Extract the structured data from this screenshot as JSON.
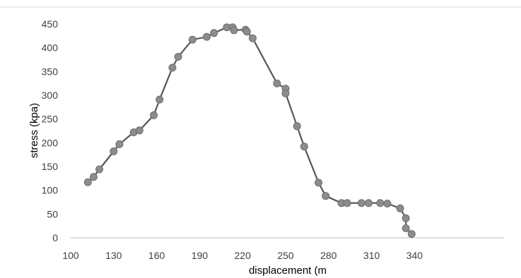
{
  "chart_data": {
    "type": "scatter",
    "title": "",
    "xlabel": "displacement (m",
    "ylabel": "stress (kpa)",
    "xlim": [
      100,
      345
    ],
    "ylim": [
      0,
      450
    ],
    "x_ticks": [
      "100",
      "130",
      "160",
      "190",
      "220",
      "250",
      "280",
      "310",
      "340"
    ],
    "y_ticks": [
      "0",
      "50",
      "100",
      "150",
      "200",
      "250",
      "300",
      "350",
      "400",
      "450"
    ],
    "grid": false,
    "legend": "none",
    "colors": {
      "line": "#595959",
      "marker_fill": "#8c8c8c",
      "marker_stroke": "#6e6e6e",
      "axis": "#bfbfbf",
      "border": "#d9d9d9"
    },
    "series": [
      {
        "x": [
          112,
          116,
          120,
          130,
          134,
          144,
          148,
          158,
          162,
          171,
          175,
          185,
          195,
          200,
          209,
          213,
          214,
          222,
          223,
          227,
          244,
          250,
          250,
          258,
          263,
          273,
          278,
          289,
          293,
          303,
          308,
          316,
          321,
          330,
          334,
          334,
          338
        ],
        "y": [
          117,
          128,
          144,
          182,
          197,
          222,
          226,
          258,
          291,
          358,
          381,
          417,
          423,
          431,
          443,
          443,
          437,
          438,
          434,
          420,
          325,
          314,
          304,
          235,
          192,
          116,
          88,
          73,
          73,
          73,
          73,
          73,
          72,
          62,
          41,
          20,
          8
        ]
      }
    ]
  }
}
